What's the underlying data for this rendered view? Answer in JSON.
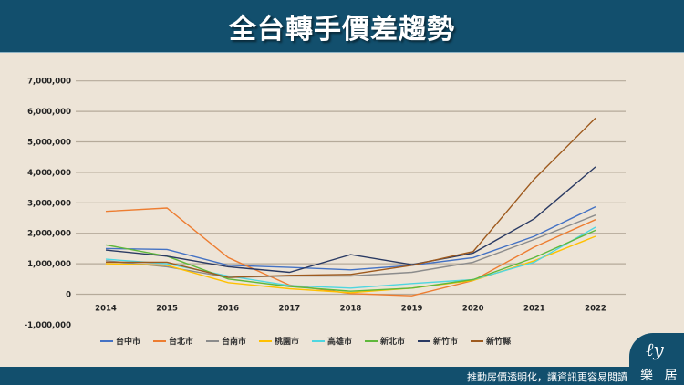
{
  "header": {
    "title": "全台轉手價差趨勢"
  },
  "chart_data": {
    "type": "line",
    "title": "",
    "xlabel": "",
    "ylabel": "",
    "categories": [
      "2014",
      "2015",
      "2016",
      "2017",
      "2018",
      "2019",
      "2020",
      "2021",
      "2022"
    ],
    "ylim": [
      -1000000,
      7000000
    ],
    "yticks": [
      -1000000,
      0,
      1000000,
      2000000,
      3000000,
      4000000,
      5000000,
      6000000,
      7000000
    ],
    "ytick_labels": [
      "-1,000,000",
      "0",
      "1,000,000",
      "2,000,000",
      "3,000,000",
      "4,000,000",
      "5,000,000",
      "6,000,000",
      "7,000,000"
    ],
    "grid": true,
    "legend_position": "bottom",
    "series": [
      {
        "name": "台中市",
        "color": "#4472c4",
        "values": [
          1500000,
          1470000,
          950000,
          880000,
          800000,
          950000,
          1200000,
          1900000,
          2870000
        ]
      },
      {
        "name": "台北市",
        "color": "#ed7d31",
        "values": [
          2720000,
          2830000,
          1200000,
          300000,
          20000,
          -50000,
          450000,
          1550000,
          2450000
        ]
      },
      {
        "name": "台南市",
        "color": "#8c8c8c",
        "values": [
          1100000,
          900000,
          550000,
          600000,
          600000,
          720000,
          1050000,
          1800000,
          2600000
        ]
      },
      {
        "name": "桃園市",
        "color": "#ffc000",
        "values": [
          1000000,
          950000,
          380000,
          180000,
          50000,
          200000,
          450000,
          1100000,
          1900000
        ]
      },
      {
        "name": "高雄市",
        "color": "#4fd6e0",
        "values": [
          1150000,
          1000000,
          600000,
          280000,
          200000,
          350000,
          480000,
          1050000,
          2200000
        ]
      },
      {
        "name": "新北市",
        "color": "#5fb83b",
        "values": [
          1620000,
          1250000,
          500000,
          250000,
          100000,
          200000,
          480000,
          1200000,
          2100000
        ]
      },
      {
        "name": "新竹市",
        "color": "#2a3a63",
        "values": [
          1450000,
          1250000,
          900000,
          720000,
          1300000,
          970000,
          1350000,
          2480000,
          4180000
        ]
      },
      {
        "name": "新竹縣",
        "color": "#9e5a1e",
        "values": [
          1050000,
          1050000,
          550000,
          620000,
          650000,
          950000,
          1400000,
          3780000,
          5780000
        ]
      }
    ]
  },
  "footer": {
    "slogan": "推動房價透明化，讓資訊更容易閱讀",
    "logo_text": "樂居",
    "logo_mark": "ℓy"
  }
}
